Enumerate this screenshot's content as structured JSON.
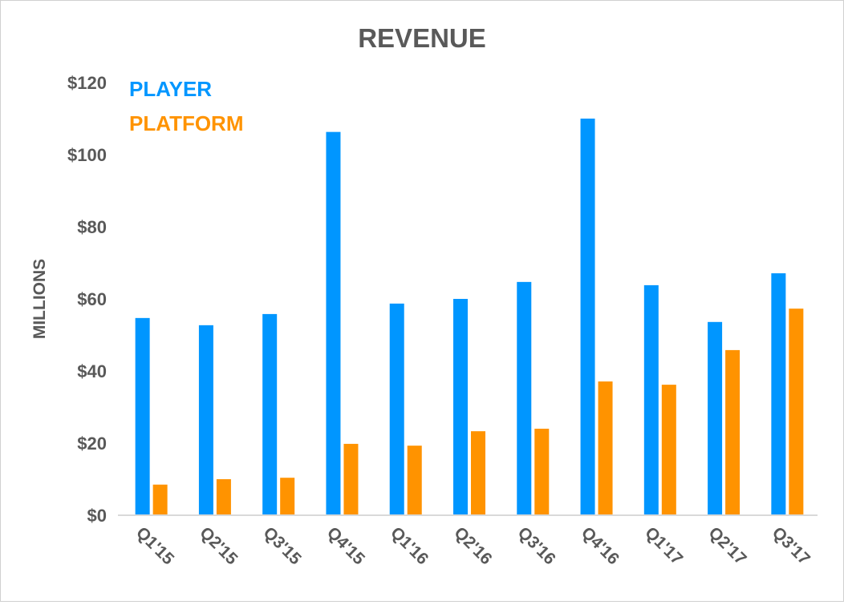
{
  "chart_data": {
    "type": "bar",
    "title": "REVENUE",
    "xlabel": "",
    "ylabel": "MILLIONS",
    "ylim": [
      0,
      120
    ],
    "yticks": [
      "$0",
      "$20",
      "$40",
      "$60",
      "$80",
      "$100",
      "$120"
    ],
    "ytick_values": [
      0,
      20,
      40,
      60,
      80,
      100,
      120
    ],
    "grid": false,
    "legend_position": "top-left",
    "categories": [
      "Q1'15",
      "Q2'15",
      "Q3'15",
      "Q4'15",
      "Q1'16",
      "Q2'16",
      "Q3'16",
      "Q4'16",
      "Q1'17",
      "Q2'17",
      "Q3'17"
    ],
    "series": [
      {
        "name": "PLAYER",
        "color": "#0096FF",
        "values": [
          54.7,
          52.7,
          55.8,
          106.3,
          58.7,
          60,
          64.7,
          110,
          63.8,
          53.6,
          67.1
        ]
      },
      {
        "name": "PLATFORM",
        "color": "#FF9300",
        "values": [
          8.5,
          10,
          10.4,
          19.8,
          19.3,
          23.3,
          24,
          37.1,
          36.2,
          45.8,
          57.3
        ]
      }
    ]
  }
}
